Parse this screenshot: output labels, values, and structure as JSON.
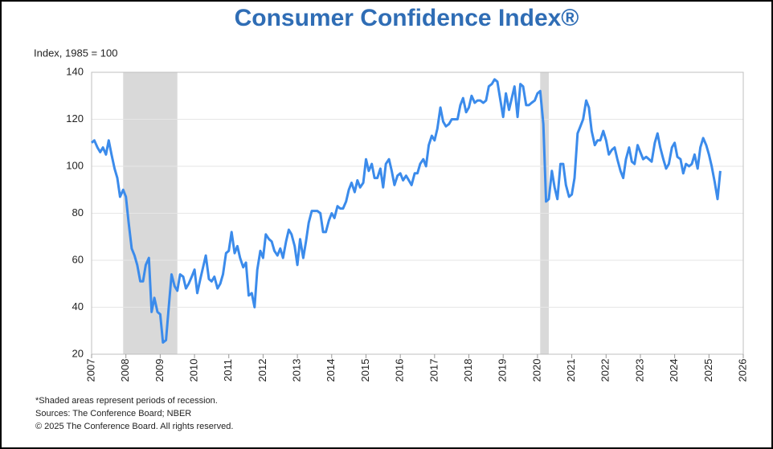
{
  "chart_data": {
    "type": "line",
    "title": "Consumer Confidence Index®",
    "y_axis_label": "Index, 1985 = 100",
    "footnotes": [
      "*Shaded areas represent periods of recession.",
      "Sources: The Conference Board; NBER",
      "© 2025 The Conference Board. All rights reserved."
    ],
    "recessions": [
      [
        2007.92,
        2009.5
      ],
      [
        2020.08,
        2020.33
      ]
    ],
    "recession_color": "#d9d9d9",
    "xlim": [
      2007,
      2026
    ],
    "xticks": [
      2007,
      2008,
      2009,
      2010,
      2011,
      2012,
      2013,
      2014,
      2015,
      2016,
      2017,
      2018,
      2019,
      2020,
      2021,
      2022,
      2023,
      2024,
      2025,
      2026
    ],
    "ylim": [
      20,
      140
    ],
    "yticks": [
      20,
      40,
      60,
      80,
      100,
      120,
      140
    ],
    "grid": true,
    "x": [
      2007,
      2007.08,
      2007.17,
      2007.25,
      2007.33,
      2007.42,
      2007.5,
      2007.58,
      2007.67,
      2007.75,
      2007.83,
      2007.92,
      2008,
      2008.08,
      2008.17,
      2008.25,
      2008.33,
      2008.42,
      2008.5,
      2008.58,
      2008.67,
      2008.75,
      2008.83,
      2008.92,
      2009,
      2009.08,
      2009.17,
      2009.25,
      2009.33,
      2009.42,
      2009.5,
      2009.58,
      2009.67,
      2009.75,
      2009.83,
      2009.92,
      2010,
      2010.08,
      2010.17,
      2010.25,
      2010.33,
      2010.42,
      2010.5,
      2010.58,
      2010.67,
      2010.75,
      2010.83,
      2010.92,
      2011,
      2011.08,
      2011.17,
      2011.25,
      2011.33,
      2011.42,
      2011.5,
      2011.58,
      2011.67,
      2011.75,
      2011.83,
      2011.92,
      2012,
      2012.08,
      2012.17,
      2012.25,
      2012.33,
      2012.42,
      2012.5,
      2012.58,
      2012.67,
      2012.75,
      2012.83,
      2012.92,
      2013,
      2013.08,
      2013.17,
      2013.25,
      2013.33,
      2013.42,
      2013.5,
      2013.58,
      2013.67,
      2013.75,
      2013.83,
      2013.92,
      2014,
      2014.08,
      2014.17,
      2014.25,
      2014.33,
      2014.42,
      2014.5,
      2014.58,
      2014.67,
      2014.75,
      2014.83,
      2014.92,
      2015,
      2015.08,
      2015.17,
      2015.25,
      2015.33,
      2015.42,
      2015.5,
      2015.58,
      2015.67,
      2015.75,
      2015.83,
      2015.92,
      2016,
      2016.08,
      2016.17,
      2016.25,
      2016.33,
      2016.42,
      2016.5,
      2016.58,
      2016.67,
      2016.75,
      2016.83,
      2016.92,
      2017,
      2017.08,
      2017.17,
      2017.25,
      2017.33,
      2017.42,
      2017.5,
      2017.58,
      2017.67,
      2017.75,
      2017.83,
      2017.92,
      2018,
      2018.08,
      2018.17,
      2018.25,
      2018.33,
      2018.42,
      2018.5,
      2018.58,
      2018.67,
      2018.75,
      2018.83,
      2018.92,
      2019,
      2019.08,
      2019.17,
      2019.25,
      2019.33,
      2019.42,
      2019.5,
      2019.58,
      2019.67,
      2019.75,
      2019.83,
      2019.92,
      2020,
      2020.08,
      2020.17,
      2020.25,
      2020.33,
      2020.42,
      2020.5,
      2020.58,
      2020.67,
      2020.75,
      2020.83,
      2020.92,
      2021,
      2021.08,
      2021.17,
      2021.25,
      2021.33,
      2021.42,
      2021.5,
      2021.58,
      2021.67,
      2021.75,
      2021.83,
      2021.92,
      2022,
      2022.08,
      2022.17,
      2022.25,
      2022.33,
      2022.42,
      2022.5,
      2022.58,
      2022.67,
      2022.75,
      2022.83,
      2022.92,
      2023,
      2023.08,
      2023.17,
      2023.25,
      2023.33,
      2023.42,
      2023.5,
      2023.58,
      2023.67,
      2023.75,
      2023.83,
      2023.92,
      2024,
      2024.08,
      2024.17,
      2024.25,
      2024.33,
      2024.42,
      2024.5,
      2024.58,
      2024.67,
      2024.75,
      2024.83,
      2024.92,
      2025,
      2025.08,
      2025.17,
      2025.25,
      2025.33
    ],
    "series": [
      {
        "color": "#3b8beb",
        "values": [
          110,
          111,
          108,
          106,
          108,
          105,
          111,
          105,
          99,
          95,
          87,
          90,
          87,
          76,
          65,
          62,
          58,
          51,
          51,
          58,
          61,
          38,
          44,
          38,
          37,
          25,
          26,
          40,
          54,
          49,
          47,
          54,
          53,
          48,
          50,
          53,
          56,
          46,
          52,
          57,
          62,
          52,
          51,
          53,
          48,
          50,
          54,
          63,
          64,
          72,
          63,
          66,
          61,
          57,
          59,
          45,
          46,
          40,
          56,
          64,
          61,
          71,
          69,
          68,
          64,
          62,
          65,
          61,
          68,
          73,
          71,
          66,
          58,
          69,
          61,
          68,
          76,
          81,
          81,
          81,
          80,
          72,
          72,
          77,
          80,
          78,
          83,
          82,
          82,
          85,
          90,
          93,
          89,
          94,
          91,
          93,
          103,
          98,
          101,
          95,
          95,
          99,
          91,
          101,
          103,
          98,
          92,
          96,
          97,
          94,
          96,
          94,
          92,
          97,
          97,
          101,
          103,
          100,
          109,
          113,
          111,
          116,
          125,
          119,
          117,
          118,
          120,
          120,
          120,
          126,
          129,
          123,
          125,
          130,
          127,
          128,
          128,
          127,
          128,
          134,
          135,
          137,
          136,
          128,
          121,
          131,
          124,
          129,
          134,
          121,
          135,
          134,
          126,
          126,
          127,
          128,
          131,
          132,
          118,
          85,
          86,
          98,
          91,
          86,
          101,
          101,
          92,
          87,
          88,
          95,
          114,
          117,
          120,
          128,
          125,
          115,
          109,
          111,
          111,
          115,
          111,
          105,
          107,
          108,
          103,
          98,
          95,
          103,
          108,
          102,
          101,
          109,
          106,
          103,
          104,
          103,
          102,
          110,
          114,
          108,
          103,
          99,
          101,
          108,
          110,
          104,
          103,
          97,
          101,
          100,
          101,
          105,
          99,
          108,
          112,
          109,
          105,
          100,
          93,
          86,
          98
        ]
      }
    ]
  }
}
